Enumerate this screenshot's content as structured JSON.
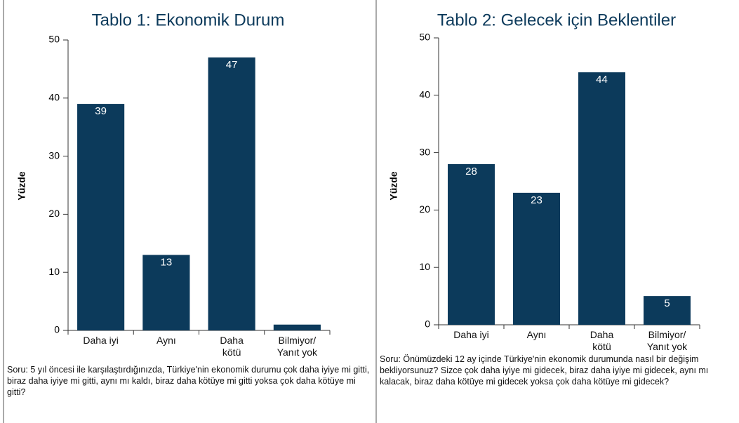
{
  "chart_data": [
    {
      "type": "bar",
      "title": "Tablo 1: Ekonomik Durum",
      "ylabel": "Yüzde",
      "categories": [
        "Daha iyi",
        "Aynı",
        "Daha\nkötü",
        "Bilmiyor/\nYanıt yok"
      ],
      "values": [
        39,
        13,
        47,
        1
      ],
      "value_labels": [
        "39",
        "13",
        "47",
        null
      ],
      "color": "#0c3a5b",
      "ylim": [
        0,
        50
      ],
      "yticks": [
        0,
        10,
        20,
        30,
        40,
        50
      ],
      "question": "Soru: 5 yıl öncesi ile karşılaştırdığınızda, Türkiye'nin ekonomik durumu çok daha iyiye mi gitti, biraz daha iyiye mi gitti, aynı mı kaldı, biraz daha kötüye mi gitti yoksa çok daha kötüye mi gitti?"
    },
    {
      "type": "bar",
      "title": "Tablo 2: Gelecek için Beklentiler",
      "ylabel": "Yüzde",
      "categories": [
        "Daha iyi",
        "Aynı",
        "Daha\nkötü",
        "Bilmiyor/\nYanıt yok"
      ],
      "values": [
        28,
        23,
        44,
        5
      ],
      "color": "#0c3a5b",
      "ylim": [
        0,
        50
      ],
      "yticks": [
        0,
        10,
        20,
        30,
        40,
        50
      ],
      "question": "Soru: Önümüzdeki 12 ay içinde Türkiye'nin ekonomik durumunda nasıl bir değişim bekliyorsunuz? Sizce çok daha iyiye mi gidecek, biraz daha iyiye mi gidecek, aynı mı kalacak, biraz daha kötüye mi gidecek yoksa çok daha kötüye mi gidecek?"
    }
  ]
}
